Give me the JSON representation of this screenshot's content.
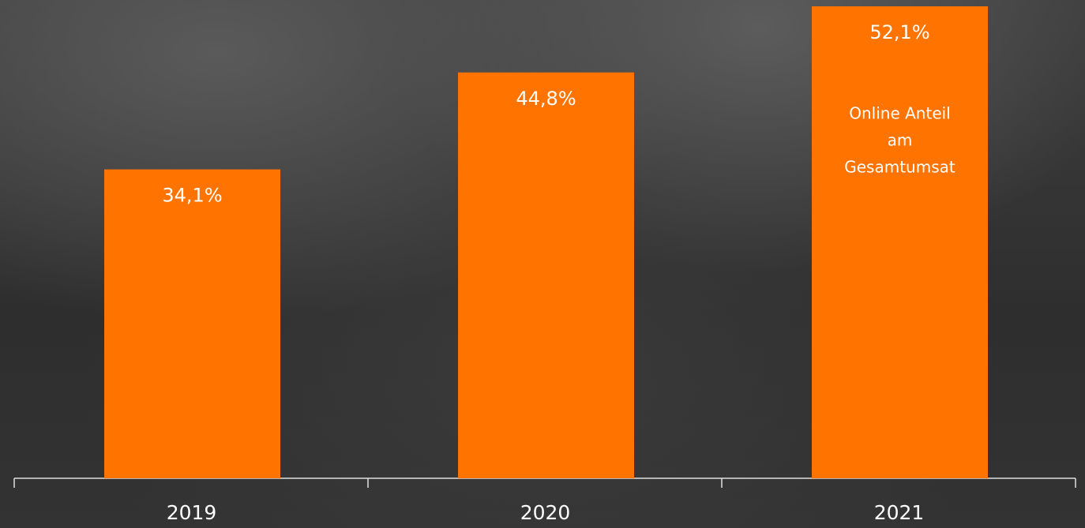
{
  "chart_data": {
    "type": "bar",
    "categories": [
      "2019",
      "2020",
      "2021"
    ],
    "values": [
      34.1,
      44.8,
      52.1
    ],
    "value_labels": [
      "34,1%",
      "44,8%",
      "52,1%"
    ],
    "color": "#ff7300",
    "annotation": [
      "Online Anteil",
      "am",
      "Gesamtumsat"
    ]
  }
}
